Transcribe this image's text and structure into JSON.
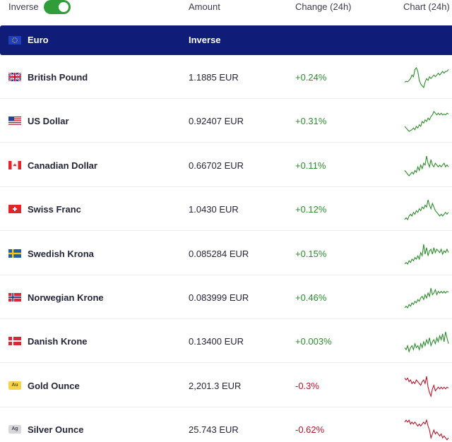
{
  "header": {
    "toggle_label": "Inverse",
    "toggle_on": true,
    "col_amount": "Amount",
    "col_change": "Change (24h)",
    "col_chart": "Chart (24h)"
  },
  "base": {
    "currency": "Euro",
    "label": "Inverse"
  },
  "colors": {
    "positive": "#2e8b2e",
    "negative": "#b3162a",
    "base_row": "#0f1c78",
    "toggle": "#2e9d3a"
  },
  "rows": [
    {
      "name": "British Pound",
      "amount": "1.1885 EUR",
      "change": "+0.24%",
      "dir": "up",
      "icon": "uk-flag-icon",
      "chart_data": {
        "type": "line",
        "values": [
          5,
          5.5,
          5.2,
          6,
          7,
          9,
          8,
          12,
          13,
          11,
          6,
          4,
          3,
          2,
          5,
          7,
          6,
          8,
          7,
          8,
          9,
          8,
          9,
          10,
          9,
          10,
          11,
          10,
          11,
          11,
          12
        ]
      }
    },
    {
      "name": "US Dollar",
      "amount": "0.92407 EUR",
      "change": "+0.31%",
      "dir": "up",
      "icon": "us-flag-icon",
      "chart_data": {
        "type": "line",
        "values": [
          4,
          3,
          2,
          1,
          1.5,
          2,
          3,
          2,
          4,
          3,
          5,
          4,
          7,
          6,
          8,
          7,
          9,
          8,
          10,
          11,
          13,
          12,
          11,
          12,
          11,
          12,
          11,
          11.5,
          11,
          12,
          11.5
        ]
      }
    },
    {
      "name": "Canadian Dollar",
      "amount": "0.66702 EUR",
      "change": "+0.11%",
      "dir": "up",
      "icon": "canada-flag-icon",
      "chart_data": {
        "type": "line",
        "values": [
          6,
          5,
          4,
          3,
          4,
          5,
          4,
          6,
          5,
          8,
          6,
          9,
          7,
          10,
          9,
          14,
          10,
          8,
          12,
          9,
          8,
          10,
          9,
          8,
          9,
          8,
          9,
          10,
          8,
          9,
          8
        ]
      }
    },
    {
      "name": "Swiss Franc",
      "amount": "1.0430 EUR",
      "change": "+0.12%",
      "dir": "up",
      "icon": "swiss-flag-icon",
      "chart_data": {
        "type": "line",
        "values": [
          3,
          4,
          3,
          5,
          6,
          5,
          7,
          6,
          8,
          7,
          9,
          8,
          10,
          9,
          11,
          10,
          14,
          11,
          9,
          12,
          10,
          8,
          7,
          6,
          5,
          6,
          5,
          6,
          7,
          6,
          7
        ]
      }
    },
    {
      "name": "Swedish Krona",
      "amount": "0.085284 EUR",
      "change": "+0.15%",
      "dir": "up",
      "icon": "sweden-flag-icon",
      "chart_data": {
        "type": "line",
        "values": [
          2,
          3,
          2,
          4,
          3,
          5,
          4,
          6,
          5,
          7,
          5,
          9,
          7,
          14,
          8,
          12,
          7,
          10,
          11,
          8,
          12,
          9,
          11,
          10,
          9,
          11,
          8,
          10,
          9,
          11,
          9
        ]
      }
    },
    {
      "name": "Norwegian Krone",
      "amount": "0.083999 EUR",
      "change": "+0.46%",
      "dir": "up",
      "icon": "norway-flag-icon",
      "chart_data": {
        "type": "line",
        "values": [
          1,
          2,
          1,
          3,
          2,
          4,
          3,
          5,
          4,
          6,
          5,
          7,
          8,
          6,
          9,
          7,
          10,
          8,
          13,
          9,
          10,
          12,
          9,
          11,
          10,
          11,
          10,
          11,
          10,
          11,
          10.5
        ]
      }
    },
    {
      "name": "Danish Krone",
      "amount": "0.13400 EUR",
      "change": "+0.003%",
      "dir": "up",
      "icon": "denmark-flag-icon",
      "chart_data": {
        "type": "line",
        "values": [
          5,
          4,
          6,
          3,
          5,
          6,
          4,
          7,
          5,
          6,
          4,
          7,
          5,
          8,
          6,
          9,
          7,
          10,
          6,
          8,
          9,
          7,
          10,
          8,
          11,
          9,
          12,
          8,
          13,
          10,
          7
        ]
      }
    },
    {
      "name": "Gold Ounce",
      "amount": "2,201.3 EUR",
      "change": "-0.3%",
      "dir": "down",
      "icon": "gold-badge-icon",
      "badge": "Au",
      "chart_data": {
        "type": "line",
        "values": [
          12,
          11,
          12,
          10,
          11,
          9,
          10,
          9,
          11,
          10,
          9,
          8,
          10,
          11,
          9,
          13,
          7,
          4,
          2,
          6,
          8,
          5,
          6,
          7,
          6,
          7,
          6,
          7,
          6,
          7,
          6.5
        ]
      }
    },
    {
      "name": "Silver Ounce",
      "amount": "25.743 EUR",
      "change": "-0.62%",
      "dir": "down",
      "icon": "silver-badge-icon",
      "badge": "Ag",
      "chart_data": {
        "type": "line",
        "values": [
          11,
          12,
          11,
          12,
          10,
          11,
          10,
          11,
          10,
          9,
          10,
          9,
          10,
          11,
          10,
          12,
          9,
          7,
          3,
          5,
          7,
          5,
          6,
          5,
          4,
          5,
          3,
          4,
          3,
          2,
          3
        ]
      }
    }
  ]
}
